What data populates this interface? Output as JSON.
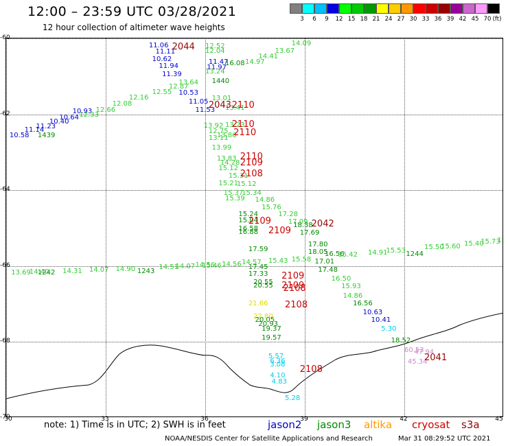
{
  "title": "12:00 – 23:59 UTC 03/28/2021",
  "subtitle": "12 hour collection of altimeter wave heights",
  "colorbar": {
    "unit": "(ft)",
    "colors": [
      "#808080",
      "#00ffff",
      "#00c0ff",
      "#0000e0",
      "#00ff00",
      "#00cc00",
      "#009900",
      "#ffff00",
      "#ffcc00",
      "#ff9900",
      "#ff0000",
      "#cc0000",
      "#990000",
      "#990099",
      "#cc66cc",
      "#ff99ff",
      "#000000"
    ],
    "labels": [
      "3",
      "6",
      "9",
      "12",
      "15",
      "18",
      "21",
      "24",
      "27",
      "30",
      "33",
      "36",
      "39",
      "42",
      "45",
      "70"
    ]
  },
  "map": {
    "lat_lines": [
      -60,
      -62,
      -64,
      -66,
      -68,
      -70
    ],
    "lat_labels": [
      "-60",
      "-62",
      "-64",
      "-66",
      "-68",
      "-70"
    ],
    "lon_lines": [
      30,
      33,
      36,
      39,
      42,
      45
    ],
    "lon_labels": [
      "30",
      "33",
      "36",
      "39",
      "42",
      "45"
    ]
  },
  "colors": {
    "jason2": "#0000cc",
    "jason3": "#008800",
    "altika": "#ff9900",
    "cryosat": "#cc0000",
    "s3a": "#990000",
    "light_green": "#33cc33",
    "cyan": "#00ccee",
    "yellow": "#dddd00",
    "pink": "#cc88cc"
  },
  "observations": [
    {
      "v": "11.06",
      "c": "#0000cc",
      "lon": 34.3,
      "lat": -60.1
    },
    {
      "v": "11.11",
      "c": "#0000cc",
      "lon": 34.5,
      "lat": -60.28
    },
    {
      "v": "10.62",
      "c": "#0000cc",
      "lon": 34.4,
      "lat": -60.47
    },
    {
      "v": "11.94",
      "c": "#0000cc",
      "lon": 34.6,
      "lat": -60.65
    },
    {
      "v": "11.39",
      "c": "#0000cc",
      "lon": 34.7,
      "lat": -60.87
    },
    {
      "v": "10.53",
      "c": "#0000cc",
      "lon": 35.2,
      "lat": -61.35
    },
    {
      "v": "11.05",
      "c": "#0000cc",
      "lon": 35.5,
      "lat": -61.6
    },
    {
      "v": "11.53",
      "c": "#0000cc",
      "lon": 35.7,
      "lat": -61.8
    },
    {
      "v": "11.47",
      "c": "#0000cc",
      "lon": 36.1,
      "lat": -60.55
    },
    {
      "v": "11.97",
      "c": "#0000cc",
      "lon": 36.05,
      "lat": -60.68
    },
    {
      "v": "10.93",
      "c": "#0000cc",
      "lon": 32.0,
      "lat": -61.85
    },
    {
      "v": "10.64",
      "c": "#0000cc",
      "lon": 31.6,
      "lat": -62.0
    },
    {
      "v": "10.40",
      "c": "#0000cc",
      "lon": 31.3,
      "lat": -62.12
    },
    {
      "v": "11.23",
      "c": "#0000cc",
      "lon": 30.9,
      "lat": -62.25
    },
    {
      "v": "11.14",
      "c": "#0000cc",
      "lon": 30.55,
      "lat": -62.33
    },
    {
      "v": "10.58",
      "c": "#0000cc",
      "lon": 30.1,
      "lat": -62.47
    },
    {
      "v": "1439",
      "c": "#008800",
      "lon": 30.95,
      "lat": -62.47
    },
    {
      "v": "1440",
      "c": "#008800",
      "lon": 36.2,
      "lat": -61.05
    },
    {
      "v": "1242",
      "c": "#008800",
      "lon": 30.95,
      "lat": -66.1
    },
    {
      "v": "1243",
      "c": "#008800",
      "lon": 33.95,
      "lat": -66.05
    },
    {
      "v": "1244",
      "c": "#008800",
      "lon": 42.05,
      "lat": -65.6
    },
    {
      "v": "12.52",
      "c": "#33cc33",
      "lon": 36.0,
      "lat": -60.12
    },
    {
      "v": "12.04",
      "c": "#33cc33",
      "lon": 36.0,
      "lat": -60.25
    },
    {
      "v": "16.08",
      "c": "#008800",
      "lon": 36.6,
      "lat": -60.57
    },
    {
      "v": "13.24",
      "c": "#33cc33",
      "lon": 36.0,
      "lat": -60.8
    },
    {
      "v": "13.64",
      "c": "#33cc33",
      "lon": 35.2,
      "lat": -61.08
    },
    {
      "v": "12.87",
      "c": "#33cc33",
      "lon": 34.9,
      "lat": -61.2
    },
    {
      "v": "12.55",
      "c": "#33cc33",
      "lon": 34.4,
      "lat": -61.33
    },
    {
      "v": "12.16",
      "c": "#33cc33",
      "lon": 33.7,
      "lat": -61.48
    },
    {
      "v": "12.08",
      "c": "#33cc33",
      "lon": 33.2,
      "lat": -61.65
    },
    {
      "v": "12.66",
      "c": "#33cc33",
      "lon": 32.7,
      "lat": -61.8
    },
    {
      "v": "12.33",
      "c": "#33cc33",
      "lon": 32.2,
      "lat": -61.93
    },
    {
      "v": "13.01",
      "c": "#33cc33",
      "lon": 36.2,
      "lat": -61.5
    },
    {
      "v": "13.41",
      "c": "#33cc33",
      "lon": 36.6,
      "lat": -61.75
    },
    {
      "v": "13.23",
      "c": "#33cc33",
      "lon": 36.6,
      "lat": -62.2
    },
    {
      "v": "13.92",
      "c": "#33cc33",
      "lon": 35.95,
      "lat": -62.22
    },
    {
      "v": "12.75",
      "c": "#33cc33",
      "lon": 36.1,
      "lat": -62.37
    },
    {
      "v": "13.86",
      "c": "#33cc33",
      "lon": 36.35,
      "lat": -62.47
    },
    {
      "v": "13.11",
      "c": "#33cc33",
      "lon": 36.1,
      "lat": -62.55
    },
    {
      "v": "13.99",
      "c": "#33cc33",
      "lon": 36.2,
      "lat": -62.8
    },
    {
      "v": "13.83",
      "c": "#33cc33",
      "lon": 36.35,
      "lat": -63.1
    },
    {
      "v": "14.28",
      "c": "#33cc33",
      "lon": 36.45,
      "lat": -63.2
    },
    {
      "v": "15.12",
      "c": "#33cc33",
      "lon": 36.4,
      "lat": -63.35
    },
    {
      "v": "15.21",
      "c": "#33cc33",
      "lon": 36.4,
      "lat": -63.75
    },
    {
      "v": "15.31",
      "c": "#33cc33",
      "lon": 36.7,
      "lat": -63.55
    },
    {
      "v": "15.12",
      "c": "#33cc33",
      "lon": 36.95,
      "lat": -63.77
    },
    {
      "v": "15.37",
      "c": "#33cc33",
      "lon": 36.55,
      "lat": -64.0
    },
    {
      "v": "15.34",
      "c": "#33cc33",
      "lon": 37.1,
      "lat": -64.0
    },
    {
      "v": "15.39",
      "c": "#33cc33",
      "lon": 36.6,
      "lat": -64.15
    },
    {
      "v": "14.86",
      "c": "#33cc33",
      "lon": 37.5,
      "lat": -64.18
    },
    {
      "v": "15.76",
      "c": "#33cc33",
      "lon": 37.7,
      "lat": -64.37
    },
    {
      "v": "15.24",
      "c": "#008800",
      "lon": 37.0,
      "lat": -64.55
    },
    {
      "v": "17.28",
      "c": "#33cc33",
      "lon": 38.2,
      "lat": -64.55
    },
    {
      "v": "15.04",
      "c": "#008800",
      "lon": 37.0,
      "lat": -64.72
    },
    {
      "v": "17.09",
      "c": "#33cc33",
      "lon": 38.5,
      "lat": -64.75
    },
    {
      "v": "18.38",
      "c": "#008800",
      "lon": 38.65,
      "lat": -64.85
    },
    {
      "v": "16.58",
      "c": "#008800",
      "lon": 37.0,
      "lat": -64.93
    },
    {
      "v": "16.88",
      "c": "#008800",
      "lon": 37.0,
      "lat": -65.03
    },
    {
      "v": "17.69",
      "c": "#008800",
      "lon": 38.85,
      "lat": -65.05
    },
    {
      "v": "17.80",
      "c": "#008800",
      "lon": 39.1,
      "lat": -65.35
    },
    {
      "v": "17.59",
      "c": "#008800",
      "lon": 37.3,
      "lat": -65.48
    },
    {
      "v": "18.05",
      "c": "#008800",
      "lon": 39.1,
      "lat": -65.55
    },
    {
      "v": "16.56",
      "c": "#008800",
      "lon": 39.6,
      "lat": -65.6
    },
    {
      "v": "17.01",
      "c": "#008800",
      "lon": 39.3,
      "lat": -65.8
    },
    {
      "v": "17.45",
      "c": "#008800",
      "lon": 37.3,
      "lat": -65.95
    },
    {
      "v": "17.48",
      "c": "#008800",
      "lon": 39.4,
      "lat": -66.03
    },
    {
      "v": "17.33",
      "c": "#008800",
      "lon": 37.3,
      "lat": -66.13
    },
    {
      "v": "16.50",
      "c": "#33cc33",
      "lon": 39.8,
      "lat": -66.25
    },
    {
      "v": "20.55",
      "c": "#008800",
      "lon": 37.45,
      "lat": -66.35
    },
    {
      "v": "20.55",
      "c": "#008800",
      "lon": 37.45,
      "lat": -66.43
    },
    {
      "v": "15.93",
      "c": "#33cc33",
      "lon": 40.1,
      "lat": -66.45
    },
    {
      "v": "14.86",
      "c": "#33cc33",
      "lon": 40.15,
      "lat": -66.7
    },
    {
      "v": "16.56",
      "c": "#008800",
      "lon": 40.45,
      "lat": -66.9
    },
    {
      "v": "21.66",
      "c": "#dddd00",
      "lon": 37.3,
      "lat": -66.9
    },
    {
      "v": "10.63",
      "c": "#0000cc",
      "lon": 40.75,
      "lat": -67.15
    },
    {
      "v": "22.80",
      "c": "#dddd00",
      "lon": 37.45,
      "lat": -67.25
    },
    {
      "v": "20.05",
      "c": "#008800",
      "lon": 37.5,
      "lat": -67.35
    },
    {
      "v": "10.41",
      "c": "#0000cc",
      "lon": 41.0,
      "lat": -67.35
    },
    {
      "v": "20.93",
      "c": "#008800",
      "lon": 37.6,
      "lat": -67.45
    },
    {
      "v": "19.37",
      "c": "#008800",
      "lon": 37.7,
      "lat": -67.58
    },
    {
      "v": "5.30",
      "c": "#00ccee",
      "lon": 41.3,
      "lat": -67.58
    },
    {
      "v": "19.57",
      "c": "#008800",
      "lon": 37.7,
      "lat": -67.82
    },
    {
      "v": "18.52",
      "c": "#008800",
      "lon": 41.6,
      "lat": -67.88
    },
    {
      "v": "5.57",
      "c": "#00ccee",
      "lon": 37.9,
      "lat": -68.3
    },
    {
      "v": "6.36",
      "c": "#00ccee",
      "lon": 37.95,
      "lat": -68.42
    },
    {
      "v": "3.08",
      "c": "#00ccee",
      "lon": 37.95,
      "lat": -68.52
    },
    {
      "v": "4.10",
      "c": "#00ccee",
      "lon": 37.95,
      "lat": -68.8
    },
    {
      "v": "4.83",
      "c": "#00ccee",
      "lon": 38.0,
      "lat": -68.97
    },
    {
      "v": "5.28",
      "c": "#00ccee",
      "lon": 38.4,
      "lat": -69.4
    },
    {
      "v": "60.53",
      "c": "#cc88cc",
      "lon": 42.0,
      "lat": -68.13
    },
    {
      "v": "47.94",
      "c": "#cc88cc",
      "lon": 42.3,
      "lat": -68.2
    },
    {
      "v": "45.34",
      "c": "#cc88cc",
      "lon": 42.1,
      "lat": -68.45
    },
    {
      "v": "13.69",
      "c": "#33cc33",
      "lon": 30.15,
      "lat": -66.1
    },
    {
      "v": "14.40",
      "c": "#33cc33",
      "lon": 30.7,
      "lat": -66.08
    },
    {
      "v": "14.31",
      "c": "#33cc33",
      "lon": 31.7,
      "lat": -66.05
    },
    {
      "v": "14.07",
      "c": "#33cc33",
      "lon": 32.5,
      "lat": -66.02
    },
    {
      "v": "14.90",
      "c": "#33cc33",
      "lon": 33.3,
      "lat": -66.0
    },
    {
      "v": "14.51",
      "c": "#33cc33",
      "lon": 34.6,
      "lat": -65.95
    },
    {
      "v": "14.07",
      "c": "#33cc33",
      "lon": 35.1,
      "lat": -65.93
    },
    {
      "v": "14.56",
      "c": "#33cc33",
      "lon": 35.7,
      "lat": -65.9
    },
    {
      "v": "15.46",
      "c": "#33cc33",
      "lon": 35.9,
      "lat": -65.91
    },
    {
      "v": "14.56",
      "c": "#33cc33",
      "lon": 36.5,
      "lat": -65.87
    },
    {
      "v": "14.57",
      "c": "#33cc33",
      "lon": 37.1,
      "lat": -65.83
    },
    {
      "v": "15.43",
      "c": "#33cc33",
      "lon": 37.9,
      "lat": -65.78
    },
    {
      "v": "15.58",
      "c": "#33cc33",
      "lon": 38.6,
      "lat": -65.75
    },
    {
      "v": "15.42",
      "c": "#33cc33",
      "lon": 40.0,
      "lat": -65.63
    },
    {
      "v": "14.91",
      "c": "#33cc33",
      "lon": 40.9,
      "lat": -65.57
    },
    {
      "v": "15.53",
      "c": "#33cc33",
      "lon": 41.45,
      "lat": -65.52
    },
    {
      "v": "15.50",
      "c": "#33cc33",
      "lon": 42.6,
      "lat": -65.43
    },
    {
      "v": "15.60",
      "c": "#33cc33",
      "lon": 43.1,
      "lat": -65.4
    },
    {
      "v": "15.40",
      "c": "#33cc33",
      "lon": 43.8,
      "lat": -65.33
    },
    {
      "v": "15.73",
      "c": "#33cc33",
      "lon": 44.3,
      "lat": -65.28
    },
    {
      "v": "15.63",
      "c": "#33cc33",
      "lon": 44.8,
      "lat": -65.24
    },
    {
      "v": "14.97",
      "c": "#33cc33",
      "lon": 37.2,
      "lat": -60.55
    },
    {
      "v": "14.41",
      "c": "#33cc33",
      "lon": 37.6,
      "lat": -60.4
    },
    {
      "v": "13.67",
      "c": "#33cc33",
      "lon": 38.1,
      "lat": -60.25
    },
    {
      "v": "14.09",
      "c": "#33cc33",
      "lon": 38.6,
      "lat": -60.05
    }
  ],
  "time_markers": [
    {
      "v": "2044",
      "c": "#990000",
      "lon": 35.0,
      "lat": -60.1
    },
    {
      "v": "2043",
      "c": "#990000",
      "lon": 36.1,
      "lat": -61.65
    },
    {
      "v": "2110",
      "c": "#cc0000",
      "lon": 36.8,
      "lat": -61.65
    },
    {
      "v": "2110",
      "c": "#cc0000",
      "lon": 36.8,
      "lat": -62.15
    },
    {
      "v": "2110",
      "c": "#cc0000",
      "lon": 36.85,
      "lat": -62.37
    },
    {
      "v": "2110",
      "c": "#cc0000",
      "lon": 37.05,
      "lat": -63.0
    },
    {
      "v": "2109",
      "c": "#cc0000",
      "lon": 37.05,
      "lat": -63.17
    },
    {
      "v": "2108",
      "c": "#cc0000",
      "lon": 37.05,
      "lat": -63.45
    },
    {
      "v": "2109",
      "c": "#cc0000",
      "lon": 37.3,
      "lat": -64.7
    },
    {
      "v": "2109",
      "c": "#cc0000",
      "lon": 37.9,
      "lat": -64.95
    },
    {
      "v": "2042",
      "c": "#990000",
      "lon": 39.2,
      "lat": -64.78
    },
    {
      "v": "2109",
      "c": "#cc0000",
      "lon": 38.3,
      "lat": -66.15
    },
    {
      "v": "2109",
      "c": "#cc0000",
      "lon": 38.3,
      "lat": -66.4
    },
    {
      "v": "2108",
      "c": "#cc0000",
      "lon": 38.35,
      "lat": -66.47
    },
    {
      "v": "2108",
      "c": "#cc0000",
      "lon": 38.4,
      "lat": -66.9
    },
    {
      "v": "2108",
      "c": "#cc0000",
      "lon": 38.85,
      "lat": -68.6
    },
    {
      "v": "2041",
      "c": "#990000",
      "lon": 42.6,
      "lat": -68.3
    }
  ],
  "note": "note: 1) Time is in UTC; 2) SWH is in feet",
  "legend": [
    {
      "label": "jason2",
      "color": "#0000cc"
    },
    {
      "label": "jason3",
      "color": "#008800"
    },
    {
      "label": "altika",
      "color": "#ff9900"
    },
    {
      "label": "cryosat",
      "color": "#cc0000"
    },
    {
      "label": "s3a",
      "color": "#990000"
    }
  ],
  "credit": "NOAA/NESDIS Center for Satellite Applications and Research",
  "timestamp": "Mar 31 08:29:52 UTC 2021"
}
